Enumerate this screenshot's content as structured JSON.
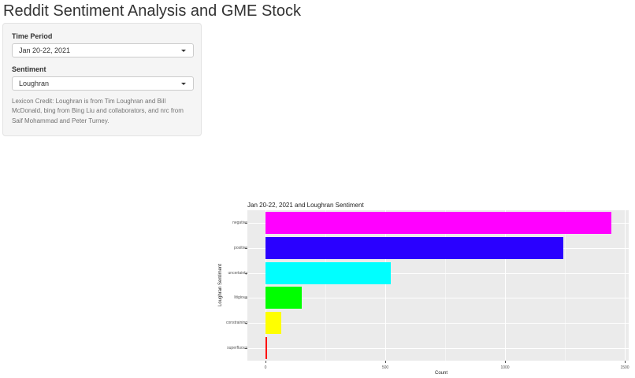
{
  "page": {
    "title": "Reddit Sentiment Analysis and GME Stock"
  },
  "sidebar": {
    "time_period": {
      "label": "Time Period",
      "value": "Jan 20-22, 2021"
    },
    "sentiment": {
      "label": "Sentiment",
      "value": "Loughran"
    },
    "credit": "Lexicon Credit: Loughran is from Tim Loughran and Bill McDonald, bing from Bing Liu and collaborators, and nrc from Saif Mohammad and Peter Turney."
  },
  "chart_data": {
    "type": "bar",
    "orientation": "horizontal",
    "title": "Jan 20-22, 2021 and Loughran Sentiment",
    "xlabel": "Count",
    "ylabel": "Loughran Sentiment",
    "categories": [
      "negative",
      "positive",
      "uncertainty",
      "litigious",
      "constraining",
      "superfluous"
    ],
    "values": [
      1444,
      1243,
      523,
      151,
      66,
      5
    ],
    "colors": [
      "#ff00ff",
      "#2a00ff",
      "#00ffff",
      "#00ff00",
      "#ffff00",
      "#ff0000"
    ],
    "xlim": [
      0,
      1500
    ],
    "xticks": [
      "0",
      "500",
      "1000",
      "1500"
    ],
    "grid": true,
    "legend": "none"
  }
}
